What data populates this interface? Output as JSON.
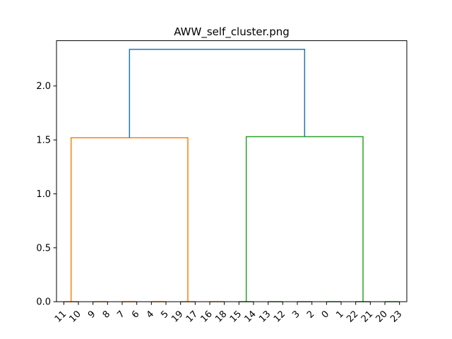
{
  "chart_data": {
    "type": "dendrogram",
    "title": "AWW_self_cluster.png",
    "xlabel": "",
    "ylabel": "",
    "ylim": [
      0,
      2.42
    ],
    "yticks": [
      0.0,
      0.5,
      1.0,
      1.5,
      2.0
    ],
    "ytick_labels": [
      "0.0",
      "0.5",
      "1.0",
      "1.5",
      "2.0"
    ],
    "leaf_labels": [
      "11",
      "10",
      "9",
      "8",
      "7",
      "6",
      "4",
      "5",
      "19",
      "17",
      "16",
      "18",
      "15",
      "14",
      "13",
      "12",
      "3",
      "2",
      "0",
      "1",
      "22",
      "21",
      "20",
      "23"
    ],
    "links": [
      {
        "x": [
          0.5,
          0.5,
          1.5,
          1.5
        ],
        "y": [
          0.0,
          0.0,
          0.0,
          0.0
        ],
        "color": "#ff7f0e"
      },
      {
        "x": [
          2.5,
          2.5,
          3.5,
          3.5
        ],
        "y": [
          0.0,
          0.0,
          0.0,
          0.0
        ],
        "color": "#ff7f0e"
      },
      {
        "x": [
          4.5,
          4.5,
          5.5,
          5.5
        ],
        "y": [
          0.0,
          0.0,
          0.0,
          0.0
        ],
        "color": "#ff7f0e"
      },
      {
        "x": [
          6.5,
          6.5,
          7.5,
          7.5
        ],
        "y": [
          0.0,
          0.0,
          0.0,
          0.0
        ],
        "color": "#ff7f0e"
      },
      {
        "x": [
          8.5,
          8.5,
          9.5,
          9.5
        ],
        "y": [
          0.0,
          0.0,
          0.0,
          0.0
        ],
        "color": "#ff7f0e"
      },
      {
        "x": [
          10.5,
          10.5,
          11.5,
          11.5
        ],
        "y": [
          0.0,
          0.0,
          0.0,
          0.0
        ],
        "color": "#ff7f0e"
      },
      {
        "x": [
          1.0,
          1.0,
          9.0,
          9.0
        ],
        "y": [
          0.0,
          1.52,
          1.52,
          0.0
        ],
        "color": "#ff7f0e"
      },
      {
        "x": [
          12.5,
          12.5,
          13.5,
          13.5
        ],
        "y": [
          0.0,
          0.0,
          0.0,
          0.0
        ],
        "color": "#2ca02c"
      },
      {
        "x": [
          14.5,
          14.5,
          15.5,
          15.5
        ],
        "y": [
          0.0,
          0.0,
          0.0,
          0.0
        ],
        "color": "#2ca02c"
      },
      {
        "x": [
          16.5,
          16.5,
          17.5,
          17.5
        ],
        "y": [
          0.0,
          0.0,
          0.0,
          0.0
        ],
        "color": "#2ca02c"
      },
      {
        "x": [
          18.5,
          18.5,
          19.5,
          19.5
        ],
        "y": [
          0.0,
          0.0,
          0.0,
          0.0
        ],
        "color": "#2ca02c"
      },
      {
        "x": [
          20.5,
          20.5,
          21.5,
          21.5
        ],
        "y": [
          0.0,
          0.0,
          0.0,
          0.0
        ],
        "color": "#2ca02c"
      },
      {
        "x": [
          22.5,
          22.5,
          23.5,
          23.5
        ],
        "y": [
          0.0,
          0.0,
          0.0,
          0.0
        ],
        "color": "#2ca02c"
      },
      {
        "x": [
          13.0,
          13.0,
          21.0,
          21.0
        ],
        "y": [
          0.0,
          1.53,
          1.53,
          0.0
        ],
        "color": "#2ca02c"
      },
      {
        "x": [
          5.0,
          5.0,
          17.0,
          17.0
        ],
        "y": [
          1.52,
          2.34,
          2.34,
          1.53
        ],
        "color": "#1f77b4"
      }
    ],
    "grid": false
  }
}
